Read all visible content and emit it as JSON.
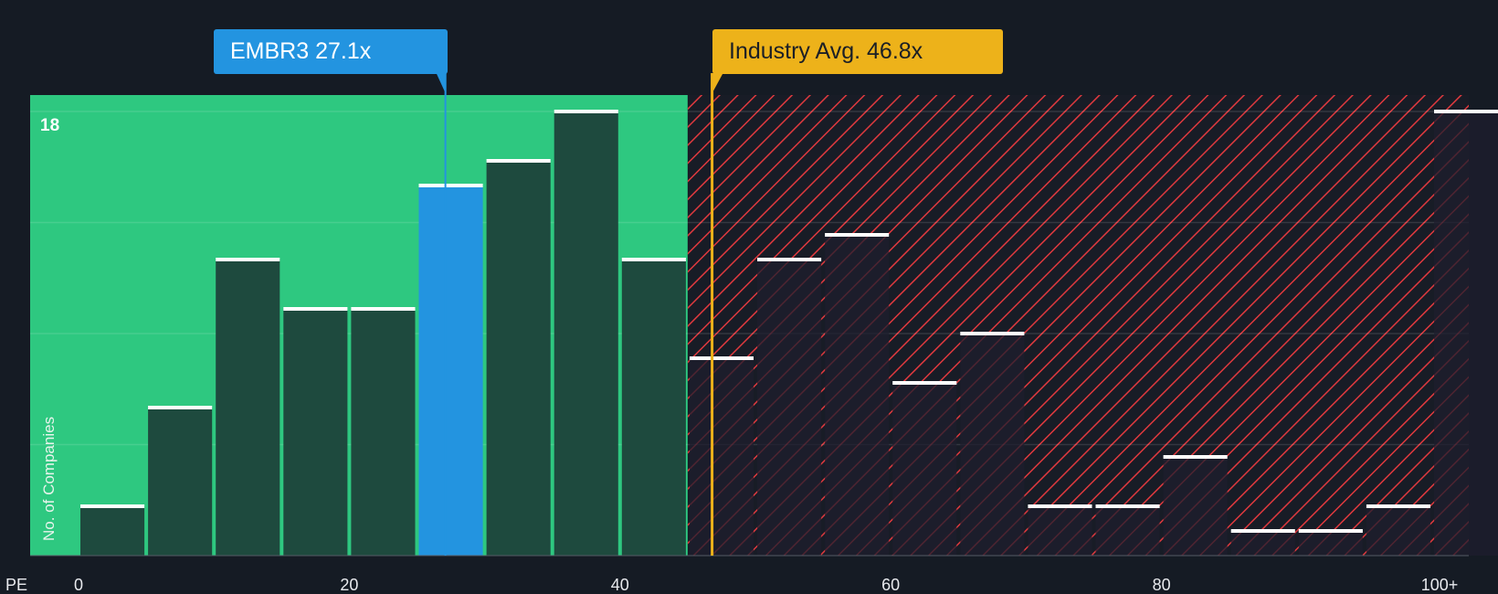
{
  "chart_data": {
    "type": "bar",
    "title": "",
    "xlabel": "PE",
    "ylabel": "No. of Companies",
    "bins": [
      [
        0,
        5
      ],
      [
        5,
        10
      ],
      [
        10,
        15
      ],
      [
        15,
        20
      ],
      [
        20,
        25
      ],
      [
        25,
        30
      ],
      [
        30,
        35
      ],
      [
        35,
        40
      ],
      [
        40,
        45
      ],
      [
        45,
        50
      ],
      [
        50,
        55
      ],
      [
        55,
        60
      ],
      [
        60,
        65
      ],
      [
        65,
        70
      ],
      [
        70,
        75
      ],
      [
        75,
        80
      ],
      [
        80,
        85
      ],
      [
        85,
        90
      ],
      [
        90,
        95
      ],
      [
        95,
        100
      ],
      [
        100,
        105
      ]
    ],
    "values": [
      2,
      6,
      12,
      10,
      10,
      15,
      16,
      18,
      12,
      8,
      12,
      13,
      7,
      9,
      2,
      2,
      4,
      1,
      1,
      2,
      18
    ],
    "highlight_bin": 5,
    "x_ticks": [
      {
        "v": 0,
        "label": "0"
      },
      {
        "v": 20,
        "label": "20"
      },
      {
        "v": 40,
        "label": "40"
      },
      {
        "v": 60,
        "label": "60"
      },
      {
        "v": 80,
        "label": "80"
      },
      {
        "v": 100,
        "label": "100+"
      }
    ],
    "y_tick_label": "18",
    "ylim": [
      0,
      18
    ],
    "xlim": [
      -3.5,
      105
    ],
    "gridlines": [
      4.5,
      9,
      13.5,
      18
    ],
    "company": {
      "label": "EMBR3 27.1x",
      "value": 27.1
    },
    "industry": {
      "label": "Industry Avg. 46.8x",
      "value": 46.8
    },
    "fair_boundary": 45
  },
  "colors": {
    "bg": "#151b24",
    "green": "#2ec880",
    "bar": "#1e4a3e",
    "highlight": "#2394e0",
    "industry": "#edb21a",
    "hatch": "#e0393e"
  }
}
